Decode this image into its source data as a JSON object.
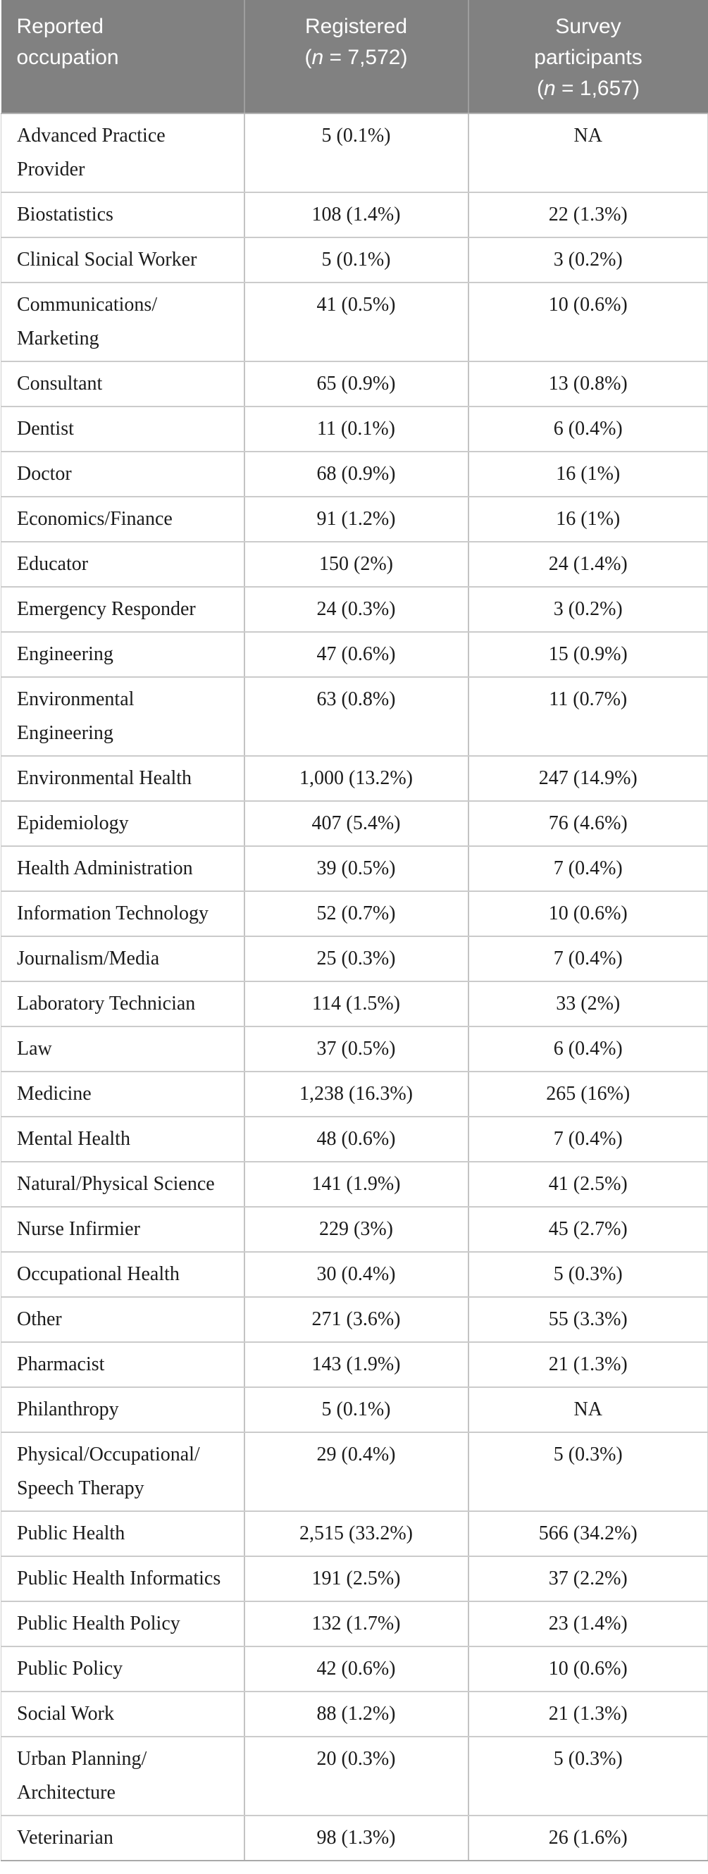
{
  "table": {
    "header": {
      "occupation": {
        "line1": "Reported",
        "line2": "occupation"
      },
      "registered": {
        "line1": "Registered",
        "paren": "(",
        "n": "n",
        "rest": " = 7,572)"
      },
      "survey": {
        "line1": "Survey",
        "line2": "participants",
        "paren": "(",
        "n": "n",
        "rest": " = 1,657)"
      }
    },
    "rows": [
      {
        "occupation_lines": [
          "Advanced Practice",
          "Provider"
        ],
        "registered": "5 (0.1%)",
        "survey": "NA"
      },
      {
        "occupation_lines": [
          "Biostatistics"
        ],
        "registered": "108 (1.4%)",
        "survey": "22 (1.3%)"
      },
      {
        "occupation_lines": [
          "Clinical Social Worker"
        ],
        "registered": "5 (0.1%)",
        "survey": "3 (0.2%)"
      },
      {
        "occupation_lines": [
          "Communications/",
          "Marketing"
        ],
        "registered": "41 (0.5%)",
        "survey": "10 (0.6%)"
      },
      {
        "occupation_lines": [
          "Consultant"
        ],
        "registered": "65 (0.9%)",
        "survey": "13 (0.8%)"
      },
      {
        "occupation_lines": [
          "Dentist"
        ],
        "registered": "11 (0.1%)",
        "survey": "6 (0.4%)"
      },
      {
        "occupation_lines": [
          "Doctor"
        ],
        "registered": "68 (0.9%)",
        "survey": "16 (1%)"
      },
      {
        "occupation_lines": [
          "Economics/Finance"
        ],
        "registered": "91 (1.2%)",
        "survey": "16 (1%)"
      },
      {
        "occupation_lines": [
          "Educator"
        ],
        "registered": "150 (2%)",
        "survey": "24 (1.4%)"
      },
      {
        "occupation_lines": [
          "Emergency Responder"
        ],
        "registered": "24 (0.3%)",
        "survey": "3 (0.2%)"
      },
      {
        "occupation_lines": [
          "Engineering"
        ],
        "registered": "47 (0.6%)",
        "survey": "15 (0.9%)"
      },
      {
        "occupation_lines": [
          "Environmental",
          "Engineering"
        ],
        "registered": "63 (0.8%)",
        "survey": "11 (0.7%)"
      },
      {
        "occupation_lines": [
          "Environmental Health"
        ],
        "registered": "1,000 (13.2%)",
        "survey": "247 (14.9%)"
      },
      {
        "occupation_lines": [
          "Epidemiology"
        ],
        "registered": "407 (5.4%)",
        "survey": "76 (4.6%)"
      },
      {
        "occupation_lines": [
          "Health Administration"
        ],
        "registered": "39 (0.5%)",
        "survey": "7 (0.4%)"
      },
      {
        "occupation_lines": [
          "Information Technology"
        ],
        "registered": "52 (0.7%)",
        "survey": "10 (0.6%)"
      },
      {
        "occupation_lines": [
          "Journalism/Media"
        ],
        "registered": "25 (0.3%)",
        "survey": "7 (0.4%)"
      },
      {
        "occupation_lines": [
          "Laboratory Technician"
        ],
        "registered": "114 (1.5%)",
        "survey": "33 (2%)"
      },
      {
        "occupation_lines": [
          "Law"
        ],
        "registered": "37 (0.5%)",
        "survey": "6 (0.4%)"
      },
      {
        "occupation_lines": [
          "Medicine"
        ],
        "registered": "1,238 (16.3%)",
        "survey": "265 (16%)"
      },
      {
        "occupation_lines": [
          "Mental Health"
        ],
        "registered": "48 (0.6%)",
        "survey": "7 (0.4%)"
      },
      {
        "occupation_lines": [
          "Natural/Physical Science"
        ],
        "registered": "141 (1.9%)",
        "survey": "41 (2.5%)"
      },
      {
        "occupation_lines": [
          "Nurse Infirmier"
        ],
        "registered": "229 (3%)",
        "survey": "45 (2.7%)"
      },
      {
        "occupation_lines": [
          "Occupational Health"
        ],
        "registered": "30 (0.4%)",
        "survey": "5 (0.3%)"
      },
      {
        "occupation_lines": [
          "Other"
        ],
        "registered": "271 (3.6%)",
        "survey": "55 (3.3%)"
      },
      {
        "occupation_lines": [
          "Pharmacist"
        ],
        "registered": "143 (1.9%)",
        "survey": "21 (1.3%)"
      },
      {
        "occupation_lines": [
          "Philanthropy"
        ],
        "registered": "5 (0.1%)",
        "survey": "NA"
      },
      {
        "occupation_lines": [
          "Physical/Occupational/",
          "Speech Therapy"
        ],
        "registered": "29 (0.4%)",
        "survey": "5 (0.3%)"
      },
      {
        "occupation_lines": [
          "Public Health"
        ],
        "registered": "2,515 (33.2%)",
        "survey": "566 (34.2%)"
      },
      {
        "occupation_lines": [
          "Public Health Informatics"
        ],
        "registered": "191 (2.5%)",
        "survey": "37 (2.2%)"
      },
      {
        "occupation_lines": [
          "Public Health Policy"
        ],
        "registered": "132 (1.7%)",
        "survey": "23 (1.4%)"
      },
      {
        "occupation_lines": [
          "Public Policy"
        ],
        "registered": "42 (0.6%)",
        "survey": "10 (0.6%)"
      },
      {
        "occupation_lines": [
          "Social Work"
        ],
        "registered": "88 (1.2%)",
        "survey": "21 (1.3%)"
      },
      {
        "occupation_lines": [
          "Urban Planning/",
          "Architecture"
        ],
        "registered": "20 (0.3%)",
        "survey": "5 (0.3%)"
      },
      {
        "occupation_lines": [
          "Veterinarian"
        ],
        "registered": "98 (1.3%)",
        "survey": "26 (1.6%)"
      }
    ],
    "colors": {
      "header_background": "#818181",
      "header_text": "#ffffff",
      "body_text": "#1b1b1b",
      "row_border": "#cbcbcb",
      "column_border": "#c3c3c3"
    }
  }
}
